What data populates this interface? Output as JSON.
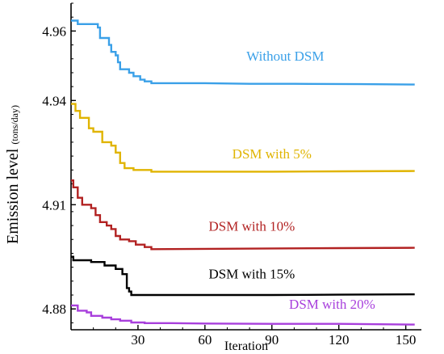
{
  "chart_data": {
    "type": "line",
    "xlabel": "Iteration",
    "ylabel": "Emission level",
    "ylabel_unit": "(tons/day)",
    "xlim": [
      0,
      157
    ],
    "ylim": [
      4.874,
      4.968
    ],
    "x_ticks": [
      30,
      60,
      90,
      120,
      150
    ],
    "y_ticks": [
      4.88,
      4.91,
      4.94,
      4.96
    ],
    "x_tick_labels": [
      "30",
      "60",
      "90",
      "120",
      "150"
    ],
    "y_tick_labels": [
      "4.88",
      "4.91",
      "4.94",
      "4.96"
    ],
    "grid": false,
    "series": [
      {
        "name": "Without DSM",
        "color": "#3aa0e8",
        "points": [
          [
            0,
            4.963
          ],
          [
            3,
            4.963
          ],
          [
            3,
            4.962
          ],
          [
            12,
            4.962
          ],
          [
            12,
            4.961
          ],
          [
            13,
            4.961
          ],
          [
            13,
            4.958
          ],
          [
            17,
            4.958
          ],
          [
            17,
            4.956
          ],
          [
            18,
            4.956
          ],
          [
            18,
            4.954
          ],
          [
            20,
            4.954
          ],
          [
            20,
            4.953
          ],
          [
            21,
            4.953
          ],
          [
            21,
            4.951
          ],
          [
            22,
            4.951
          ],
          [
            22,
            4.949
          ],
          [
            26,
            4.949
          ],
          [
            26,
            4.948
          ],
          [
            28,
            4.948
          ],
          [
            28,
            4.947
          ],
          [
            31,
            4.947
          ],
          [
            31,
            4.946
          ],
          [
            33,
            4.946
          ],
          [
            33,
            4.9455
          ],
          [
            36,
            4.9455
          ],
          [
            36,
            4.945
          ],
          [
            60,
            4.945
          ],
          [
            80,
            4.9448
          ],
          [
            100,
            4.9448
          ],
          [
            130,
            4.9447
          ],
          [
            154,
            4.9446
          ]
        ]
      },
      {
        "name": "DSM with 5%",
        "color": "#e0b400",
        "points": [
          [
            0,
            4.939
          ],
          [
            2,
            4.939
          ],
          [
            2,
            4.937
          ],
          [
            4,
            4.937
          ],
          [
            4,
            4.935
          ],
          [
            8,
            4.935
          ],
          [
            8,
            4.932
          ],
          [
            10,
            4.932
          ],
          [
            10,
            4.931
          ],
          [
            14,
            4.931
          ],
          [
            14,
            4.928
          ],
          [
            18,
            4.928
          ],
          [
            18,
            4.927
          ],
          [
            20,
            4.927
          ],
          [
            20,
            4.925
          ],
          [
            22,
            4.925
          ],
          [
            22,
            4.922
          ],
          [
            24,
            4.922
          ],
          [
            24,
            4.9205
          ],
          [
            28,
            4.9205
          ],
          [
            28,
            4.92
          ],
          [
            36,
            4.92
          ],
          [
            36,
            4.9195
          ],
          [
            60,
            4.9195
          ],
          [
            90,
            4.9195
          ],
          [
            120,
            4.9196
          ],
          [
            154,
            4.9197
          ]
        ]
      },
      {
        "name": "DSM with 10%",
        "color": "#b22222",
        "points": [
          [
            0,
            4.917
          ],
          [
            1,
            4.917
          ],
          [
            1,
            4.915
          ],
          [
            3,
            4.915
          ],
          [
            3,
            4.912
          ],
          [
            5,
            4.912
          ],
          [
            5,
            4.91
          ],
          [
            9,
            4.91
          ],
          [
            9,
            4.909
          ],
          [
            11,
            4.909
          ],
          [
            11,
            4.907
          ],
          [
            13,
            4.907
          ],
          [
            13,
            4.905
          ],
          [
            16,
            4.905
          ],
          [
            16,
            4.904
          ],
          [
            18,
            4.904
          ],
          [
            18,
            4.903
          ],
          [
            20,
            4.903
          ],
          [
            20,
            4.901
          ],
          [
            22,
            4.901
          ],
          [
            22,
            4.9
          ],
          [
            26,
            4.9
          ],
          [
            26,
            4.8995
          ],
          [
            29,
            4.8995
          ],
          [
            29,
            4.8985
          ],
          [
            33,
            4.8985
          ],
          [
            33,
            4.8978
          ],
          [
            36,
            4.8978
          ],
          [
            36,
            4.8972
          ],
          [
            60,
            4.8973
          ],
          [
            90,
            4.8974
          ],
          [
            120,
            4.8975
          ],
          [
            154,
            4.8976
          ]
        ]
      },
      {
        "name": "DSM with 15%",
        "color": "#000000",
        "points": [
          [
            0,
            4.895
          ],
          [
            1,
            4.895
          ],
          [
            1,
            4.894
          ],
          [
            9,
            4.894
          ],
          [
            9,
            4.8935
          ],
          [
            15,
            4.8935
          ],
          [
            15,
            4.8925
          ],
          [
            20,
            4.8925
          ],
          [
            20,
            4.8915
          ],
          [
            23,
            4.8915
          ],
          [
            23,
            4.89
          ],
          [
            25,
            4.89
          ],
          [
            25,
            4.886
          ],
          [
            26,
            4.886
          ],
          [
            26,
            4.885
          ],
          [
            27,
            4.885
          ],
          [
            27,
            4.884
          ],
          [
            60,
            4.884
          ],
          [
            90,
            4.884
          ],
          [
            120,
            4.8841
          ],
          [
            154,
            4.8842
          ]
        ]
      },
      {
        "name": "DSM with 20%",
        "color": "#a83fdc",
        "points": [
          [
            0,
            4.881
          ],
          [
            3,
            4.881
          ],
          [
            3,
            4.8795
          ],
          [
            7,
            4.8795
          ],
          [
            7,
            4.879
          ],
          [
            9,
            4.879
          ],
          [
            9,
            4.878
          ],
          [
            14,
            4.878
          ],
          [
            14,
            4.8775
          ],
          [
            18,
            4.8775
          ],
          [
            18,
            4.877
          ],
          [
            22,
            4.877
          ],
          [
            22,
            4.8766
          ],
          [
            27,
            4.8766
          ],
          [
            27,
            4.8761
          ],
          [
            33,
            4.8761
          ],
          [
            33,
            4.8759
          ],
          [
            45,
            4.8759
          ],
          [
            60,
            4.8758
          ],
          [
            90,
            4.8757
          ],
          [
            120,
            4.8757
          ],
          [
            154,
            4.8755
          ]
        ]
      }
    ]
  }
}
